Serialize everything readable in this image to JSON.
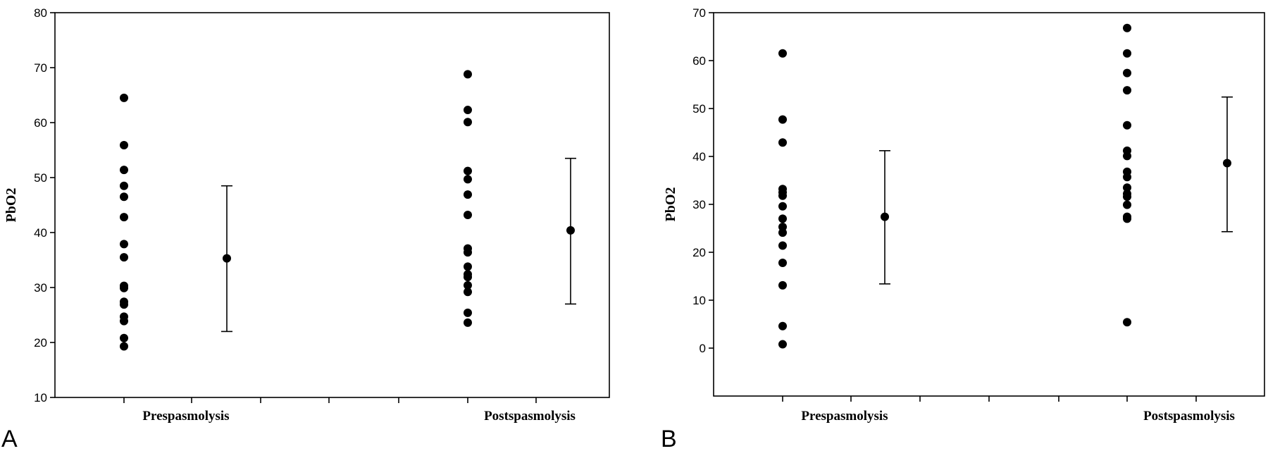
{
  "chart_data": [
    {
      "type": "scatter",
      "panel_label": "A",
      "ylabel": "PbO2",
      "xlabel": "",
      "ylim": [
        10,
        80
      ],
      "yticks": [
        10,
        20,
        30,
        40,
        50,
        60,
        70,
        80
      ],
      "categories": [
        "Prespasmolysis",
        "Postspasmolysis"
      ],
      "grid": false,
      "series": [
        {
          "category": "Prespasmolysis",
          "values": [
            64.5,
            55.9,
            51.4,
            48.5,
            46.5,
            42.8,
            37.9,
            35.5,
            30.3,
            29.9,
            27.4,
            26.9,
            24.7,
            23.9,
            20.8,
            19.3
          ],
          "mean": 35.3,
          "error_low": 22.0,
          "error_high": 48.5
        },
        {
          "category": "Postspasmolysis",
          "values": [
            68.8,
            62.3,
            60.1,
            51.2,
            49.7,
            46.9,
            43.2,
            37.1,
            36.4,
            33.8,
            32.4,
            31.9,
            30.4,
            29.2,
            25.4,
            23.6
          ],
          "mean": 40.4,
          "error_low": 27.0,
          "error_high": 53.5
        }
      ]
    },
    {
      "type": "scatter",
      "panel_label": "B",
      "ylabel": "PbO2",
      "xlabel": "",
      "ylim": [
        -10,
        70
      ],
      "yticks": [
        0,
        10,
        20,
        30,
        40,
        50,
        60,
        70
      ],
      "categories": [
        "Prespasmolysis",
        "Postspasmolysis"
      ],
      "grid": false,
      "series": [
        {
          "category": "Prespasmolysis",
          "values": [
            61.5,
            47.7,
            42.9,
            33.2,
            32.5,
            31.8,
            29.6,
            27.0,
            25.3,
            24.1,
            21.4,
            17.8,
            13.1,
            4.6,
            0.8
          ],
          "mean": 27.4,
          "error_low": 13.4,
          "error_high": 41.2
        },
        {
          "category": "Postspasmolysis",
          "values": [
            66.8,
            61.5,
            57.4,
            53.8,
            46.5,
            41.2,
            40.1,
            36.8,
            35.7,
            33.5,
            32.2,
            31.6,
            29.9,
            27.4,
            27.0,
            5.4
          ],
          "mean": 38.6,
          "error_low": 24.3,
          "error_high": 52.4
        }
      ]
    }
  ]
}
